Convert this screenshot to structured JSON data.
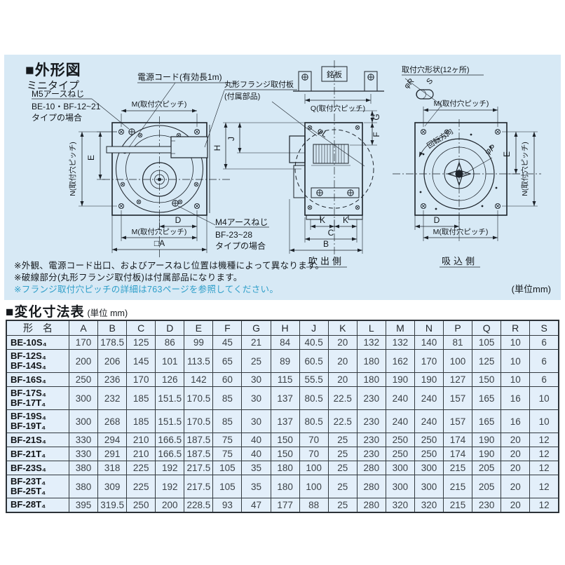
{
  "outline": {
    "title_marker": "■",
    "title": "外形図",
    "subtitle": "ミニタイプ",
    "labels": {
      "power_cord": "電源コード(有効長1m)",
      "m5_line1": "M5アースねじ",
      "m5_line2": "BE-10・BF-12~21",
      "m5_line3": "タイプの場合",
      "m4_line1": "M4アースねじ",
      "m4_line2": "BF-23~28",
      "m4_line3": "タイプの場合",
      "flange_line1": "丸形フランジ取付板",
      "flange_line2": "(付属部品)",
      "nameplate": "銘板",
      "hole_shape": "取付穴形状(12ヶ所)",
      "rotation": "回転方向",
      "m_pitch": "M(取付穴ピッチ)",
      "q_pitch": "Q(取付穴ピッチ)",
      "n_pitch": "N(取付穴ピッチ)",
      "blow_side": "吹出側",
      "suction_side": "吸込側"
    },
    "dims": {
      "a": "□A",
      "b": "B",
      "c": "C",
      "d": "D",
      "e": "E",
      "f": "F",
      "g": "G",
      "h": "H",
      "j": "J",
      "k": "K",
      "l": "φL",
      "p": "φP",
      "r": "φR",
      "s": "S"
    },
    "notes": [
      "※外観、電源コード出口、およびアースねじ位置は機種によって異なります。",
      "※破線部分(丸形フランジ取付板)は付属部品になります。",
      "※フランジ取付穴ピッチの詳細は763ページを参照してください。"
    ],
    "unit_note": "(単位mm)"
  },
  "table": {
    "title_marker": "■",
    "title": "変化寸法表",
    "unit": "(単位 mm)",
    "name_header": "形　名",
    "columns": [
      "A",
      "B",
      "C",
      "D",
      "E",
      "F",
      "G",
      "H",
      "J",
      "K",
      "L",
      "M",
      "N",
      "P",
      "Q",
      "R",
      "S"
    ],
    "rows": [
      {
        "models": [
          "BE-10S₄"
        ],
        "values": [
          170,
          178.5,
          125,
          86,
          99,
          45,
          21,
          84,
          40.5,
          20,
          132,
          132,
          140,
          81,
          105,
          10,
          6
        ]
      },
      {
        "models": [
          "BF-12S₄",
          "BF-14S₄"
        ],
        "values": [
          200,
          206,
          145,
          101,
          113.5,
          65,
          25,
          89,
          60.5,
          20,
          180,
          162,
          170,
          100,
          125,
          10,
          6
        ]
      },
      {
        "models": [
          "BF-16S₄"
        ],
        "values": [
          250,
          236,
          170,
          126,
          142,
          60,
          30,
          115,
          55.5,
          20,
          180,
          190,
          190,
          127,
          150,
          10,
          6
        ]
      },
      {
        "models": [
          "BF-17S₄",
          "BF-17T₄"
        ],
        "values": [
          300,
          232,
          185,
          151.5,
          170.5,
          85,
          30,
          137,
          80.5,
          22.5,
          230,
          240,
          240,
          157,
          165,
          16,
          10
        ]
      },
      {
        "models": [
          "BF-19S₄",
          "BF-19T₄"
        ],
        "values": [
          300,
          268,
          185,
          151.5,
          170.5,
          85,
          30,
          137,
          80.5,
          22.5,
          230,
          240,
          240,
          157,
          165,
          16,
          10
        ]
      },
      {
        "models": [
          "BF-21S₄"
        ],
        "values": [
          330,
          294,
          210,
          166.5,
          187.5,
          75,
          40,
          150,
          70,
          25,
          230,
          250,
          250,
          174,
          190,
          20,
          12
        ]
      },
      {
        "models": [
          "BF-21T₄"
        ],
        "values": [
          330,
          291,
          210,
          166.5,
          187.5,
          75,
          40,
          150,
          70,
          25,
          230,
          250,
          250,
          174,
          190,
          20,
          12
        ]
      },
      {
        "models": [
          "BF-23S₄"
        ],
        "values": [
          380,
          318,
          225,
          192,
          217.5,
          105,
          35,
          180,
          100,
          25,
          280,
          300,
          300,
          215,
          205,
          20,
          12
        ]
      },
      {
        "models": [
          "BF-23T₄",
          "BF-25T₄"
        ],
        "values": [
          380,
          309,
          225,
          192,
          217.5,
          105,
          35,
          180,
          100,
          25,
          280,
          300,
          300,
          215,
          205,
          20,
          12
        ]
      },
      {
        "models": [
          "BF-28T₄"
        ],
        "values": [
          395,
          319.5,
          250,
          200,
          228.5,
          93,
          47,
          177,
          88,
          25,
          280,
          320,
          320,
          215,
          230,
          20,
          12
        ]
      }
    ]
  },
  "colors": {
    "panel_bg": "#d7e9f5",
    "table_cell_bg": "#e3effa",
    "note_accent": "#2e9ec9",
    "line": "#1c2229"
  }
}
